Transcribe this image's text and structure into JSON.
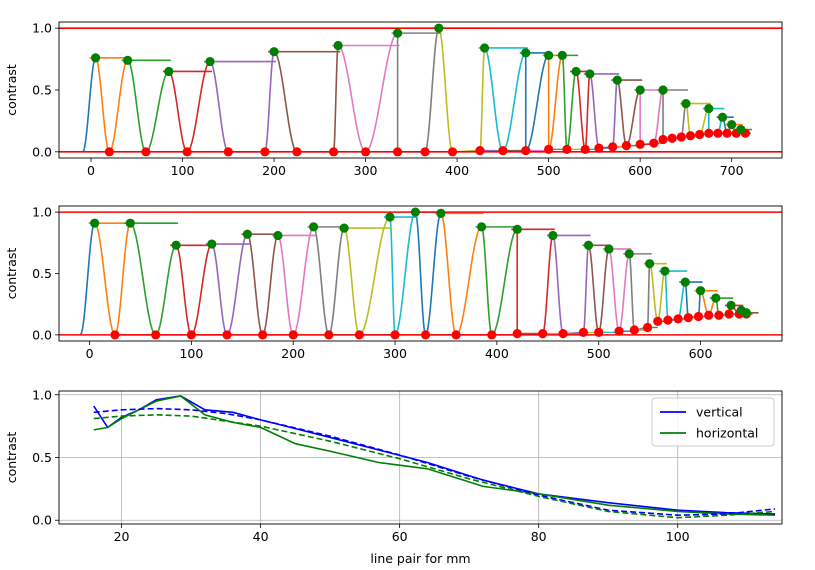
{
  "chart_data": [
    {
      "type": "line",
      "panel": "vertical-profile",
      "xlim": [
        -35,
        755
      ],
      "ylim": [
        -0.05,
        1.05
      ],
      "xticks": [
        0,
        100,
        200,
        300,
        400,
        500,
        600,
        700
      ],
      "yticks": [
        0.0,
        0.5,
        1.0
      ],
      "ylabel": "contrast",
      "xlabel": "",
      "reference_lines": [
        0,
        1
      ],
      "peaks": [
        {
          "x": 5,
          "y": 0.76
        },
        {
          "x": 40,
          "y": 0.74
        },
        {
          "x": 85,
          "y": 0.65
        },
        {
          "x": 130,
          "y": 0.73
        },
        {
          "x": 200,
          "y": 0.81
        },
        {
          "x": 270,
          "y": 0.86
        },
        {
          "x": 335,
          "y": 0.96
        },
        {
          "x": 380,
          "y": 1.0
        },
        {
          "x": 430,
          "y": 0.84
        },
        {
          "x": 475,
          "y": 0.8
        },
        {
          "x": 500,
          "y": 0.78
        },
        {
          "x": 515,
          "y": 0.78
        },
        {
          "x": 530,
          "y": 0.65
        },
        {
          "x": 545,
          "y": 0.63
        },
        {
          "x": 575,
          "y": 0.58
        },
        {
          "x": 600,
          "y": 0.5
        },
        {
          "x": 625,
          "y": 0.5
        },
        {
          "x": 650,
          "y": 0.39
        },
        {
          "x": 675,
          "y": 0.35
        },
        {
          "x": 690,
          "y": 0.28
        },
        {
          "x": 700,
          "y": 0.22
        },
        {
          "x": 710,
          "y": 0.18
        }
      ],
      "troughs": [
        {
          "x": 20,
          "y": 0.0
        },
        {
          "x": 60,
          "y": 0.0
        },
        {
          "x": 105,
          "y": 0.0
        },
        {
          "x": 150,
          "y": 0.0
        },
        {
          "x": 190,
          "y": 0.0
        },
        {
          "x": 225,
          "y": 0.0
        },
        {
          "x": 265,
          "y": 0.0
        },
        {
          "x": 300,
          "y": 0.0
        },
        {
          "x": 335,
          "y": 0.0
        },
        {
          "x": 365,
          "y": 0.0
        },
        {
          "x": 395,
          "y": 0.0
        },
        {
          "x": 425,
          "y": 0.01
        },
        {
          "x": 450,
          "y": 0.01
        },
        {
          "x": 475,
          "y": 0.01
        },
        {
          "x": 500,
          "y": 0.02
        },
        {
          "x": 520,
          "y": 0.02
        },
        {
          "x": 540,
          "y": 0.02
        },
        {
          "x": 555,
          "y": 0.03
        },
        {
          "x": 570,
          "y": 0.04
        },
        {
          "x": 585,
          "y": 0.05
        },
        {
          "x": 600,
          "y": 0.06
        },
        {
          "x": 615,
          "y": 0.07
        },
        {
          "x": 625,
          "y": 0.1
        },
        {
          "x": 635,
          "y": 0.11
        },
        {
          "x": 645,
          "y": 0.12
        },
        {
          "x": 655,
          "y": 0.13
        },
        {
          "x": 665,
          "y": 0.14
        },
        {
          "x": 675,
          "y": 0.15
        },
        {
          "x": 685,
          "y": 0.15
        },
        {
          "x": 695,
          "y": 0.15
        },
        {
          "x": 705,
          "y": 0.15
        },
        {
          "x": 715,
          "y": 0.15
        }
      ]
    },
    {
      "type": "line",
      "panel": "horizontal-profile",
      "xlim": [
        -30,
        680
      ],
      "ylim": [
        -0.05,
        1.05
      ],
      "xticks": [
        0,
        100,
        200,
        300,
        400,
        500,
        600
      ],
      "yticks": [
        0.0,
        0.5,
        1.0
      ],
      "ylabel": "contrast",
      "xlabel": "",
      "reference_lines": [
        0,
        1
      ],
      "peaks": [
        {
          "x": 5,
          "y": 0.91
        },
        {
          "x": 40,
          "y": 0.91
        },
        {
          "x": 85,
          "y": 0.73
        },
        {
          "x": 120,
          "y": 0.74
        },
        {
          "x": 155,
          "y": 0.82
        },
        {
          "x": 185,
          "y": 0.81
        },
        {
          "x": 220,
          "y": 0.88
        },
        {
          "x": 250,
          "y": 0.87
        },
        {
          "x": 295,
          "y": 0.96
        },
        {
          "x": 320,
          "y": 1.0
        },
        {
          "x": 345,
          "y": 0.99
        },
        {
          "x": 385,
          "y": 0.88
        },
        {
          "x": 420,
          "y": 0.86
        },
        {
          "x": 455,
          "y": 0.81
        },
        {
          "x": 490,
          "y": 0.73
        },
        {
          "x": 510,
          "y": 0.7
        },
        {
          "x": 530,
          "y": 0.66
        },
        {
          "x": 550,
          "y": 0.58
        },
        {
          "x": 565,
          "y": 0.52
        },
        {
          "x": 585,
          "y": 0.43
        },
        {
          "x": 600,
          "y": 0.36
        },
        {
          "x": 615,
          "y": 0.3
        },
        {
          "x": 630,
          "y": 0.24
        },
        {
          "x": 640,
          "y": 0.2
        },
        {
          "x": 645,
          "y": 0.18
        }
      ],
      "troughs": [
        {
          "x": 25,
          "y": 0.0
        },
        {
          "x": 65,
          "y": 0.0
        },
        {
          "x": 100,
          "y": 0.0
        },
        {
          "x": 135,
          "y": 0.0
        },
        {
          "x": 170,
          "y": 0.0
        },
        {
          "x": 200,
          "y": 0.0
        },
        {
          "x": 235,
          "y": 0.0
        },
        {
          "x": 265,
          "y": 0.0
        },
        {
          "x": 300,
          "y": 0.0
        },
        {
          "x": 330,
          "y": 0.0
        },
        {
          "x": 360,
          "y": 0.0
        },
        {
          "x": 395,
          "y": 0.0
        },
        {
          "x": 420,
          "y": 0.01
        },
        {
          "x": 445,
          "y": 0.01
        },
        {
          "x": 465,
          "y": 0.01
        },
        {
          "x": 485,
          "y": 0.02
        },
        {
          "x": 500,
          "y": 0.02
        },
        {
          "x": 520,
          "y": 0.03
        },
        {
          "x": 535,
          "y": 0.04
        },
        {
          "x": 548,
          "y": 0.06
        },
        {
          "x": 558,
          "y": 0.11
        },
        {
          "x": 568,
          "y": 0.12
        },
        {
          "x": 578,
          "y": 0.13
        },
        {
          "x": 588,
          "y": 0.14
        },
        {
          "x": 598,
          "y": 0.15
        },
        {
          "x": 608,
          "y": 0.16
        },
        {
          "x": 618,
          "y": 0.16
        },
        {
          "x": 628,
          "y": 0.17
        },
        {
          "x": 638,
          "y": 0.17
        },
        {
          "x": 645,
          "y": 0.17
        }
      ]
    },
    {
      "type": "line",
      "panel": "mtf-summary",
      "xlim": [
        11,
        115
      ],
      "ylim": [
        -0.03,
        1.03
      ],
      "xticks": [
        20,
        40,
        60,
        80,
        100
      ],
      "yticks": [
        0.0,
        0.5,
        1.0
      ],
      "xlabel": "line pair for mm",
      "ylabel": "contrast",
      "grid": true,
      "legend_position": "top-right",
      "legend": [
        "vertical",
        "horizontal"
      ],
      "series": [
        {
          "name": "vertical",
          "color": "#0000ff",
          "style": "solid",
          "x": [
            16,
            18,
            20,
            22.5,
            25,
            28.5,
            32,
            36,
            40,
            45,
            50,
            57,
            64,
            72,
            80,
            90,
            100,
            107,
            114
          ],
          "y": [
            0.91,
            0.74,
            0.82,
            0.88,
            0.96,
            0.99,
            0.88,
            0.86,
            0.8,
            0.73,
            0.66,
            0.56,
            0.46,
            0.32,
            0.21,
            0.14,
            0.08,
            0.06,
            0.05
          ]
        },
        {
          "name": "horizontal",
          "color": "#008000",
          "style": "solid",
          "x": [
            16,
            18,
            20,
            22.5,
            25,
            28.5,
            32,
            36,
            40,
            45,
            50,
            57,
            64,
            72,
            80,
            90,
            100,
            107,
            114
          ],
          "y": [
            0.72,
            0.74,
            0.81,
            0.88,
            0.95,
            0.99,
            0.84,
            0.78,
            0.74,
            0.61,
            0.55,
            0.46,
            0.41,
            0.27,
            0.21,
            0.12,
            0.07,
            0.05,
            0.04
          ]
        },
        {
          "name": "",
          "color": "#0000ff",
          "style": "dashed",
          "x": [
            16,
            20,
            25,
            30,
            35,
            40,
            50,
            60,
            70,
            80,
            90,
            100,
            107,
            114
          ],
          "y": [
            0.86,
            0.88,
            0.89,
            0.88,
            0.85,
            0.8,
            0.67,
            0.52,
            0.35,
            0.2,
            0.08,
            0.04,
            0.05,
            0.09
          ]
        },
        {
          "name": "",
          "color": "#008000",
          "style": "dashed",
          "x": [
            16,
            20,
            25,
            30,
            35,
            40,
            50,
            60,
            70,
            80,
            90,
            100,
            107,
            114
          ],
          "y": [
            0.81,
            0.83,
            0.84,
            0.83,
            0.79,
            0.75,
            0.63,
            0.49,
            0.33,
            0.19,
            0.07,
            0.02,
            0.04,
            0.07
          ]
        }
      ]
    }
  ]
}
